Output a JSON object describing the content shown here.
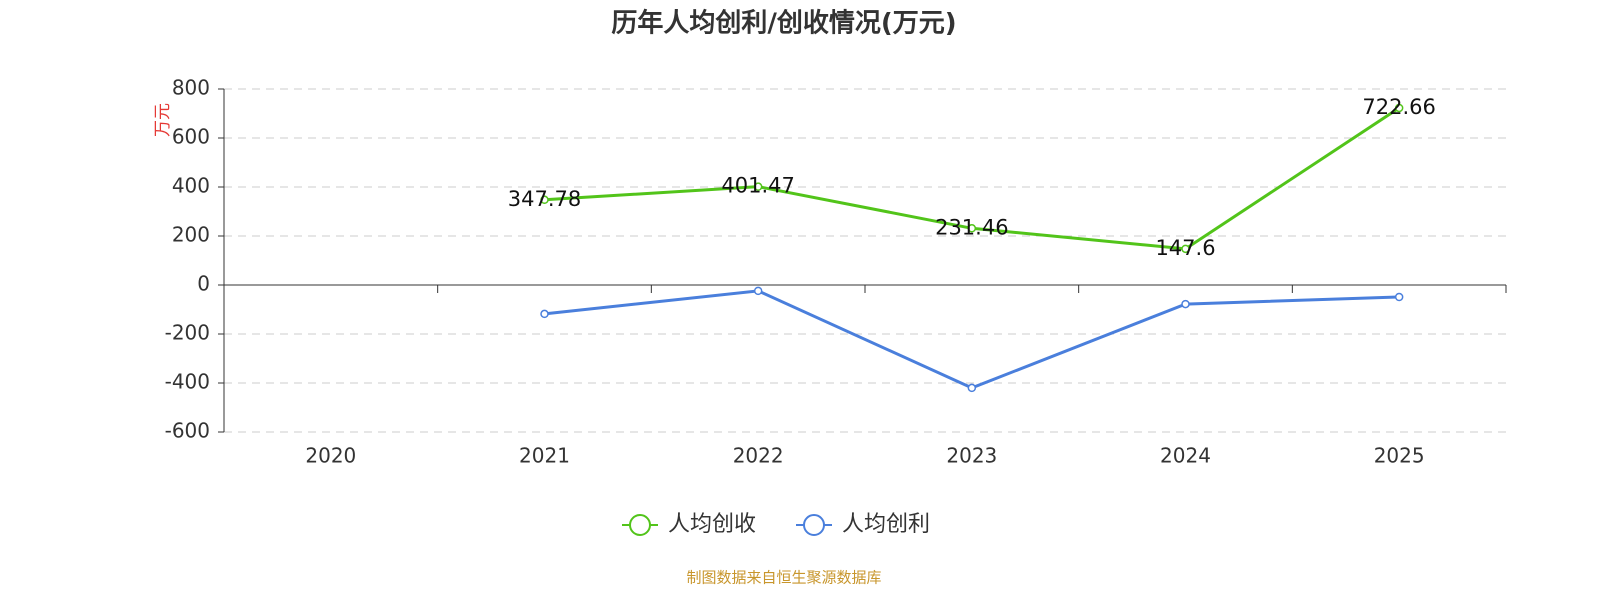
{
  "chart_data": {
    "type": "line",
    "title": "历年人均创利/创收情况(万元)",
    "y_label": "万元",
    "categories": [
      "2020",
      "2021",
      "2022",
      "2023",
      "2024",
      "2025"
    ],
    "series": [
      {
        "name": "人均创收",
        "color": "#52c41a",
        "values": [
          null,
          347.78,
          401.47,
          231.46,
          147.6,
          722.66
        ],
        "show_labels": true
      },
      {
        "name": "人均创利",
        "color": "#4a7fdc",
        "values": [
          null,
          -118,
          -24,
          -420,
          -78,
          -49
        ],
        "show_labels": false
      }
    ],
    "ylim": [
      -600,
      800
    ],
    "yticks": [
      -600,
      -400,
      -200,
      0,
      200,
      400,
      600,
      800
    ],
    "grid": true,
    "legend": "bottom",
    "source": "制图数据来自恒生聚源数据库"
  }
}
